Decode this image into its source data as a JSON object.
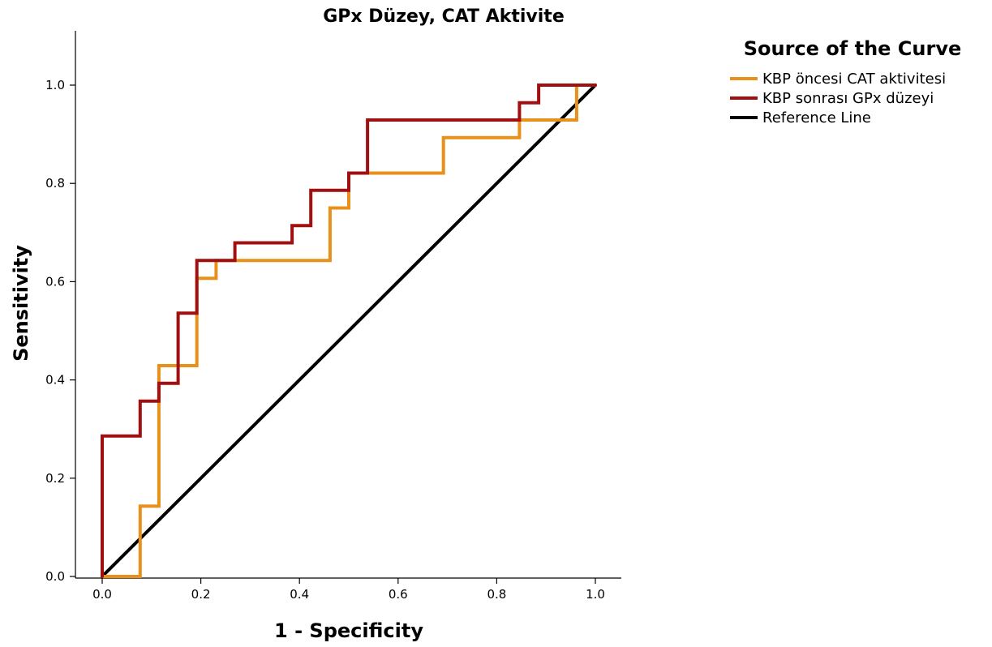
{
  "chart_data": {
    "type": "line",
    "title": "GPx Düzey, CAT Aktivite",
    "xlabel": "1 - Specificity",
    "ylabel": "Sensitivity",
    "xlim": [
      0,
      1
    ],
    "ylim": [
      0,
      1
    ],
    "x_ticks": [
      "0.0",
      "0.2",
      "0.4",
      "0.6",
      "0.8",
      "1.0"
    ],
    "y_ticks": [
      "0.0",
      "0.2",
      "0.4",
      "0.6",
      "0.8",
      "1.0"
    ],
    "grid": false,
    "legend": {
      "title": "Source of the Curve",
      "placement": "top-right"
    },
    "series": [
      {
        "name": "KBP öncesi CAT aktivitesi",
        "color": "#E8901A",
        "x": [
          0,
          0,
          0.077,
          0.077,
          0.115,
          0.115,
          0.192,
          0.192,
          0.231,
          0.231,
          0.462,
          0.462,
          0.5,
          0.5,
          0.692,
          0.692,
          0.846,
          0.846,
          0.962,
          0.962,
          1
        ],
        "y": [
          0,
          0,
          0,
          0.143,
          0.143,
          0.429,
          0.429,
          0.607,
          0.607,
          0.643,
          0.643,
          0.75,
          0.75,
          0.821,
          0.821,
          0.893,
          0.893,
          0.929,
          0.929,
          1,
          1
        ]
      },
      {
        "name": "KBP sonrası GPx düzeyi",
        "color": "#A01010",
        "x": [
          0,
          0,
          0.077,
          0.077,
          0.115,
          0.115,
          0.154,
          0.154,
          0.192,
          0.192,
          0.269,
          0.269,
          0.385,
          0.385,
          0.423,
          0.423,
          0.5,
          0.5,
          0.538,
          0.538,
          0.846,
          0.846,
          0.885,
          0.885,
          1
        ],
        "y": [
          0,
          0.286,
          0.286,
          0.357,
          0.357,
          0.393,
          0.393,
          0.536,
          0.536,
          0.643,
          0.643,
          0.679,
          0.679,
          0.714,
          0.714,
          0.786,
          0.786,
          0.821,
          0.821,
          0.929,
          0.929,
          0.964,
          0.964,
          1,
          1
        ]
      },
      {
        "name": "Reference Line",
        "color": "#000000",
        "x": [
          0,
          1
        ],
        "y": [
          0,
          1
        ]
      }
    ]
  }
}
